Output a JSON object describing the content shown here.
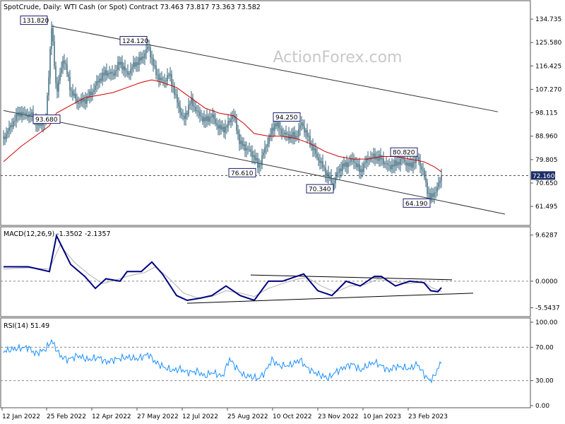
{
  "header": {
    "title": "SpotCrude, Daily:  WTI Cash (or Spot) Contract  73.463 73.817 73.363 73.582"
  },
  "watermark": "ActionForex.com",
  "colors": {
    "price": "#2f5f74",
    "sma": "#cc0000",
    "macd": "#000080",
    "signal": "#b0b0b0",
    "rsi": "#1e90ff",
    "channel": "#333333",
    "frame": "#555555"
  },
  "chart_data": [
    {
      "type": "candlestick",
      "panel": "price",
      "x_labels": [
        "12 Jan 2022",
        "25 Feb 2022",
        "12 Apr 2022",
        "27 May 2022",
        "12 Jul 2022",
        "25 Aug 2022",
        "10 Oct 2022",
        "23 Nov 2022",
        "10 Jan 2023",
        "23 Feb 2023"
      ],
      "y_ticks": [
        "134.735",
        "125.580",
        "116.425",
        "107.270",
        "98.115",
        "88.960",
        "79.805",
        "70.650",
        "61.495"
      ],
      "ylim": [
        56,
        140
      ],
      "current_price": "72.160",
      "current_value": 73.58,
      "annotations": [
        {
          "label": "131.820",
          "value": 131.82,
          "index": 73
        },
        {
          "label": "124.120",
          "value": 124.12,
          "index": 214
        },
        {
          "label": "93.680",
          "value": 93.68,
          "index": 87
        },
        {
          "label": "76.610",
          "value": 76.61,
          "index": 366
        },
        {
          "label": "94.250",
          "value": 94.25,
          "index": 427
        },
        {
          "label": "70.340",
          "value": 70.34,
          "index": 472
        },
        {
          "label": "80.820",
          "value": 80.82,
          "index": 591
        },
        {
          "label": "64.190",
          "value": 64.19,
          "index": 609
        }
      ],
      "upper_channel": [
        [
          73,
          132
        ],
        [
          705,
          98.5
        ]
      ],
      "lower_channel": [
        [
          5,
          99
        ],
        [
          715,
          58.5
        ]
      ],
      "points": [
        [
          5,
          88
        ],
        [
          26,
          98
        ],
        [
          45,
          97
        ],
        [
          54,
          93
        ],
        [
          65,
          95
        ],
        [
          73,
          131.8
        ],
        [
          80,
          106
        ],
        [
          90,
          120
        ],
        [
          100,
          107
        ],
        [
          110,
          102
        ],
        [
          120,
          103
        ],
        [
          130,
          106
        ],
        [
          140,
          111
        ],
        [
          150,
          114
        ],
        [
          160,
          113
        ],
        [
          170,
          118
        ],
        [
          180,
          113
        ],
        [
          190,
          117
        ],
        [
          200,
          119
        ],
        [
          210,
          124.1
        ],
        [
          220,
          114
        ],
        [
          230,
          110
        ],
        [
          240,
          113
        ],
        [
          250,
          103
        ],
        [
          260,
          95
        ],
        [
          270,
          103
        ],
        [
          280,
          98
        ],
        [
          290,
          95
        ],
        [
          300,
          97
        ],
        [
          310,
          92
        ],
        [
          320,
          92
        ],
        [
          330,
          98
        ],
        [
          340,
          86
        ],
        [
          350,
          84
        ],
        [
          360,
          81
        ],
        [
          366,
          76.6
        ],
        [
          375,
          84
        ],
        [
          385,
          91
        ],
        [
          390,
          94.3
        ],
        [
          400,
          90
        ],
        [
          410,
          89
        ],
        [
          420,
          89
        ],
        [
          427,
          94.2
        ],
        [
          435,
          89
        ],
        [
          445,
          83
        ],
        [
          455,
          78
        ],
        [
          465,
          73
        ],
        [
          472,
          70.3
        ],
        [
          480,
          76
        ],
        [
          490,
          78
        ],
        [
          500,
          80
        ],
        [
          510,
          75
        ],
        [
          520,
          80
        ],
        [
          530,
          81
        ],
        [
          540,
          80
        ],
        [
          550,
          77
        ],
        [
          560,
          78
        ],
        [
          570,
          80
        ],
        [
          580,
          77
        ],
        [
          591,
          80.8
        ],
        [
          600,
          74
        ],
        [
          605,
          68
        ],
        [
          609,
          64.2
        ],
        [
          615,
          67
        ],
        [
          620,
          69
        ],
        [
          625,
          73.6
        ]
      ],
      "sma": [
        [
          5,
          79
        ],
        [
          30,
          85
        ],
        [
          55,
          90
        ],
        [
          70,
          93
        ],
        [
          80,
          98
        ],
        [
          100,
          101
        ],
        [
          120,
          104
        ],
        [
          140,
          105
        ],
        [
          160,
          106
        ],
        [
          180,
          108
        ],
        [
          200,
          110
        ],
        [
          215,
          111
        ],
        [
          230,
          110
        ],
        [
          250,
          108
        ],
        [
          270,
          104
        ],
        [
          290,
          100
        ],
        [
          310,
          98
        ],
        [
          330,
          97
        ],
        [
          345,
          94
        ],
        [
          360,
          90
        ],
        [
          380,
          89
        ],
        [
          400,
          89
        ],
        [
          420,
          88
        ],
        [
          440,
          86
        ],
        [
          460,
          83
        ],
        [
          480,
          81
        ],
        [
          500,
          80
        ],
        [
          520,
          80
        ],
        [
          540,
          81
        ],
        [
          560,
          81
        ],
        [
          580,
          80
        ],
        [
          600,
          79
        ],
        [
          615,
          77
        ],
        [
          625,
          75
        ]
      ]
    },
    {
      "type": "line",
      "panel": "macd",
      "label": "MACD(12,26,9) -1.3502 -2.1357",
      "y_ticks": [
        "9.6287",
        "0.0000",
        "-5.5437"
      ],
      "ylim": [
        -6.8,
        10.6
      ],
      "series": [
        {
          "role": "macd",
          "points": [
            [
              5,
              3
            ],
            [
              40,
              3
            ],
            [
              70,
              2
            ],
            [
              80,
              9.5
            ],
            [
              100,
              3.5
            ],
            [
              120,
              1
            ],
            [
              135,
              -1.5
            ],
            [
              150,
              0.5
            ],
            [
              170,
              0
            ],
            [
              180,
              2
            ],
            [
              200,
              2
            ],
            [
              215,
              4
            ],
            [
              230,
              1.5
            ],
            [
              250,
              -3
            ],
            [
              265,
              -4
            ],
            [
              285,
              -3.5
            ],
            [
              300,
              -3
            ],
            [
              320,
              -1
            ],
            [
              340,
              -3
            ],
            [
              360,
              -4
            ],
            [
              380,
              0
            ],
            [
              400,
              0
            ],
            [
              420,
              1
            ],
            [
              430,
              1.5
            ],
            [
              450,
              -2
            ],
            [
              470,
              -3
            ],
            [
              490,
              0
            ],
            [
              510,
              -1
            ],
            [
              530,
              1
            ],
            [
              540,
              1
            ],
            [
              560,
              -1
            ],
            [
              580,
              0
            ],
            [
              600,
              -0.3
            ],
            [
              610,
              -2
            ],
            [
              620,
              -2.2
            ],
            [
              625,
              -1.35
            ]
          ]
        },
        {
          "role": "signal",
          "points": [
            [
              5,
              2.5
            ],
            [
              40,
              2.8
            ],
            [
              70,
              2.5
            ],
            [
              85,
              7.5
            ],
            [
              105,
              4
            ],
            [
              125,
              1.5
            ],
            [
              145,
              -0.5
            ],
            [
              165,
              0.3
            ],
            [
              185,
              1.2
            ],
            [
              205,
              1.8
            ],
            [
              220,
              3
            ],
            [
              240,
              0.5
            ],
            [
              260,
              -2.5
            ],
            [
              280,
              -3.5
            ],
            [
              300,
              -3.2
            ],
            [
              320,
              -2
            ],
            [
              340,
              -2.5
            ],
            [
              360,
              -3.2
            ],
            [
              380,
              -1.5
            ],
            [
              400,
              -0.5
            ],
            [
              420,
              0.4
            ],
            [
              435,
              0.8
            ],
            [
              455,
              -1
            ],
            [
              475,
              -2.3
            ],
            [
              495,
              -1
            ],
            [
              515,
              -0.8
            ],
            [
              535,
              0.4
            ],
            [
              555,
              0
            ],
            [
              575,
              -0.5
            ],
            [
              600,
              -0.2
            ],
            [
              612,
              -1.4
            ],
            [
              625,
              -2.14
            ]
          ]
        }
      ],
      "trendlines": [
        [
          [
            355,
            1.3
          ],
          [
            640,
            0.3
          ]
        ],
        [
          [
            265,
            -4.6
          ],
          [
            670,
            -2.5
          ]
        ]
      ]
    },
    {
      "type": "line",
      "panel": "rsi",
      "label": "RSI(14) 51.49",
      "y_ticks": [
        "100.00",
        "70.00",
        "30.00",
        "0.00"
      ],
      "ylim": [
        0,
        100
      ],
      "levels": [
        70,
        30
      ],
      "series": [
        {
          "role": "rsi",
          "points": [
            [
              5,
              65
            ],
            [
              20,
              68
            ],
            [
              40,
              70
            ],
            [
              50,
              62
            ],
            [
              65,
              68
            ],
            [
              73,
              78
            ],
            [
              85,
              60
            ],
            [
              95,
              55
            ],
            [
              110,
              60
            ],
            [
              125,
              55
            ],
            [
              140,
              58
            ],
            [
              150,
              52
            ],
            [
              165,
              56
            ],
            [
              180,
              58
            ],
            [
              195,
              56
            ],
            [
              210,
              62
            ],
            [
              220,
              52
            ],
            [
              235,
              45
            ],
            [
              245,
              42
            ],
            [
              255,
              44
            ],
            [
              265,
              40
            ],
            [
              280,
              41
            ],
            [
              290,
              35
            ],
            [
              300,
              40
            ],
            [
              315,
              35
            ],
            [
              325,
              56
            ],
            [
              335,
              45
            ],
            [
              345,
              36
            ],
            [
              355,
              35
            ],
            [
              366,
              32
            ],
            [
              375,
              40
            ],
            [
              385,
              55
            ],
            [
              395,
              48
            ],
            [
              410,
              48
            ],
            [
              425,
              55
            ],
            [
              435,
              45
            ],
            [
              445,
              40
            ],
            [
              455,
              36
            ],
            [
              465,
              33
            ],
            [
              475,
              40
            ],
            [
              490,
              47
            ],
            [
              500,
              50
            ],
            [
              510,
              42
            ],
            [
              520,
              48
            ],
            [
              530,
              52
            ],
            [
              540,
              48
            ],
            [
              550,
              42
            ],
            [
              560,
              47
            ],
            [
              570,
              46
            ],
            [
              580,
              44
            ],
            [
              591,
              50
            ],
            [
              600,
              38
            ],
            [
              608,
              30
            ],
            [
              615,
              35
            ],
            [
              620,
              45
            ],
            [
              625,
              51.5
            ]
          ]
        }
      ]
    }
  ]
}
